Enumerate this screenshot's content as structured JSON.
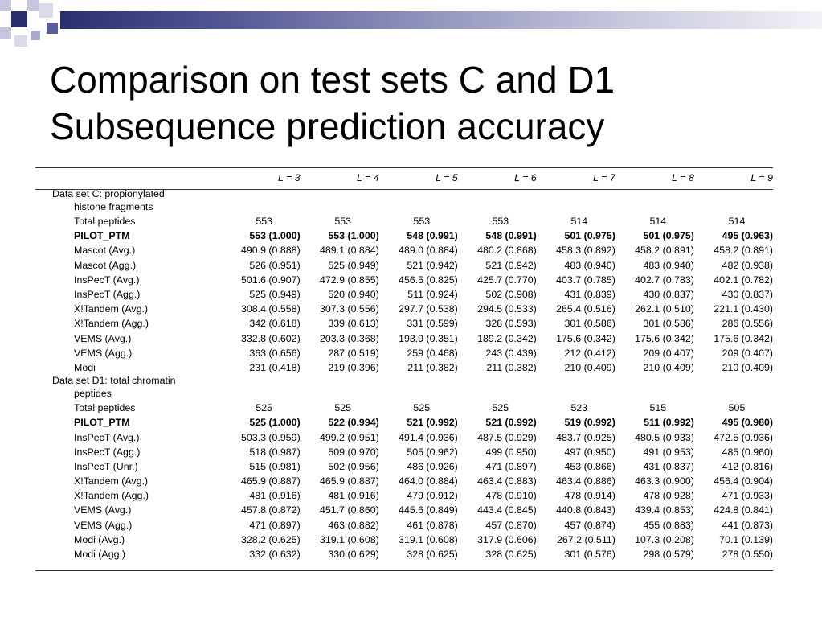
{
  "slide": {
    "title_line1": "Comparison on test sets C and D1",
    "title_line2": "Subsequence prediction accuracy",
    "accent_color": "#2b2f6e"
  },
  "table": {
    "columns": [
      "L = 3",
      "L = 4",
      "L = 5",
      "L = 6",
      "L = 7",
      "L = 8",
      "L = 9"
    ],
    "section_c": {
      "label_line1": "Data set C: propionylated",
      "label_line2": "histone fragments",
      "rows": [
        {
          "label": "Total peptides",
          "bold": false,
          "center": true,
          "values": [
            "553",
            "553",
            "553",
            "553",
            "514",
            "514",
            "514"
          ]
        },
        {
          "label": "PILOT_PTM",
          "bold": true,
          "center": false,
          "values": [
            "553 (1.000)",
            "553 (1.000)",
            "548 (0.991)",
            "548 (0.991)",
            "501 (0.975)",
            "501 (0.975)",
            "495 (0.963)"
          ]
        },
        {
          "label": "Mascot (Avg.)",
          "bold": false,
          "center": false,
          "values": [
            "490.9 (0.888)",
            "489.1 (0.884)",
            "489.0 (0.884)",
            "480.2 (0.868)",
            "458.3 (0.892)",
            "458.2 (0.891)",
            "458.2 (0.891)"
          ]
        },
        {
          "label": "Mascot (Agg.)",
          "bold": false,
          "center": false,
          "values": [
            "526 (0.951)",
            "525 (0.949)",
            "521 (0.942)",
            "521 (0.942)",
            "483 (0.940)",
            "483 (0.940)",
            "482 (0.938)"
          ]
        },
        {
          "label": "InsPecT (Avg.)",
          "bold": false,
          "center": false,
          "values": [
            "501.6 (0.907)",
            "472.9 (0.855)",
            "456.5 (0.825)",
            "425.7 (0.770)",
            "403.7 (0.785)",
            "402.7 (0.783)",
            "402.1 (0.782)"
          ]
        },
        {
          "label": "InsPecT (Agg.)",
          "bold": false,
          "center": false,
          "values": [
            "525 (0.949)",
            "520 (0.940)",
            "511 (0.924)",
            "502 (0.908)",
            "431 (0.839)",
            "430 (0.837)",
            "430 (0.837)"
          ]
        },
        {
          "label": "X!Tandem (Avg.)",
          "bold": false,
          "center": false,
          "values": [
            "308.4 (0.558)",
            "307.3 (0.556)",
            "297.7 (0.538)",
            "294.5 (0.533)",
            "265.4 (0.516)",
            "262.1 (0.510)",
            "221.1 (0.430)"
          ]
        },
        {
          "label": "X!Tandem (Agg.)",
          "bold": false,
          "center": false,
          "values": [
            "342 (0.618)",
            "339 (0.613)",
            "331 (0.599)",
            "328 (0.593)",
            "301 (0.586)",
            "301 (0.586)",
            "286 (0.556)"
          ]
        },
        {
          "label": "VEMS (Avg.)",
          "bold": false,
          "center": false,
          "values": [
            "332.8 (0.602)",
            "203.3 (0.368)",
            "193.9 (0.351)",
            "189.2 (0.342)",
            "175.6 (0.342)",
            "175.6 (0.342)",
            "175.6 (0.342)"
          ]
        },
        {
          "label": "VEMS (Agg.)",
          "bold": false,
          "center": false,
          "values": [
            "363 (0.656)",
            "287 (0.519)",
            "259 (0.468)",
            "243 (0.439)",
            "212 (0.412)",
            "209 (0.407)",
            "209 (0.407)"
          ]
        },
        {
          "label": "Modi",
          "bold": false,
          "center": false,
          "values": [
            "231 (0.418)",
            "219 (0.396)",
            "211 (0.382)",
            "211 (0.382)",
            "210 (0.409)",
            "210 (0.409)",
            "210 (0.409)"
          ]
        }
      ]
    },
    "section_d1": {
      "label_line1": "Data set D1: total chromatin",
      "label_line2": "peptides",
      "rows": [
        {
          "label": "Total peptides",
          "bold": false,
          "center": true,
          "values": [
            "525",
            "525",
            "525",
            "525",
            "523",
            "515",
            "505"
          ]
        },
        {
          "label": "PILOT_PTM",
          "bold": true,
          "center": false,
          "values": [
            "525 (1.000)",
            "522 (0.994)",
            "521 (0.992)",
            "521 (0.992)",
            "519 (0.992)",
            "511 (0.992)",
            "495 (0.980)"
          ]
        },
        {
          "label": "InsPecT (Avg.)",
          "bold": false,
          "center": false,
          "values": [
            "503.3 (0.959)",
            "499.2 (0.951)",
            "491.4 (0.936)",
            "487.5 (0.929)",
            "483.7 (0.925)",
            "480.5 (0.933)",
            "472.5 (0.936)"
          ]
        },
        {
          "label": "InsPecT (Agg.)",
          "bold": false,
          "center": false,
          "values": [
            "518 (0.987)",
            "509 (0.970)",
            "505 (0.962)",
            "499 (0.950)",
            "497 (0.950)",
            "491 (0.953)",
            "485 (0.960)"
          ]
        },
        {
          "label": "InsPecT (Unr.)",
          "bold": false,
          "center": false,
          "values": [
            "515 (0.981)",
            "502 (0.956)",
            "486 (0.926)",
            "471 (0.897)",
            "453 (0.866)",
            "431 (0.837)",
            "412 (0.816)"
          ]
        },
        {
          "label": "X!Tandem (Avg.)",
          "bold": false,
          "center": false,
          "values": [
            "465.9 (0.887)",
            "465.9 (0.887)",
            "464.0 (0.884)",
            "463.4 (0.883)",
            "463.4 (0.886)",
            "463.3 (0.900)",
            "456.4 (0.904)"
          ]
        },
        {
          "label": "X!Tandem (Agg.)",
          "bold": false,
          "center": false,
          "values": [
            "481 (0.916)",
            "481 (0.916)",
            "479 (0.912)",
            "478 (0.910)",
            "478 (0.914)",
            "478 (0.928)",
            "471 (0.933)"
          ]
        },
        {
          "label": "VEMS (Avg.)",
          "bold": false,
          "center": false,
          "values": [
            "457.8 (0.872)",
            "451.7 (0.860)",
            "445.6 (0.849)",
            "443.4 (0.845)",
            "440.8 (0.843)",
            "439.4 (0.853)",
            "424.8 (0.841)"
          ]
        },
        {
          "label": "VEMS (Agg.)",
          "bold": false,
          "center": false,
          "values": [
            "471 (0.897)",
            "463 (0.882)",
            "461 (0.878)",
            "457 (0.870)",
            "457 (0.874)",
            "455 (0.883)",
            "441 (0.873)"
          ]
        },
        {
          "label": "Modi (Avg.)",
          "bold": false,
          "center": false,
          "values": [
            "328.2 (0.625)",
            "319.1 (0.608)",
            "319.1 (0.608)",
            "317.9 (0.606)",
            "267.2 (0.511)",
            "107.3 (0.208)",
            "70.1 (0.139)"
          ]
        },
        {
          "label": "Modi (Agg.)",
          "bold": false,
          "center": false,
          "values": [
            "332 (0.632)",
            "330 (0.629)",
            "328 (0.625)",
            "328 (0.625)",
            "301 (0.576)",
            "298 (0.579)",
            "278 (0.550)"
          ]
        }
      ]
    }
  }
}
